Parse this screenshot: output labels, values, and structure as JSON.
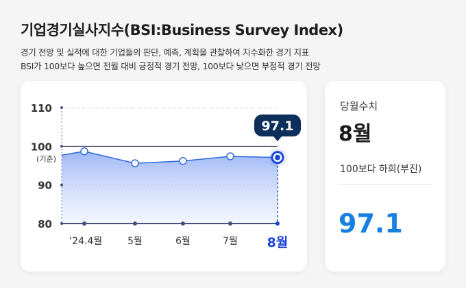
{
  "title": "기업경기실사지수(BSI:Business Survey Index)",
  "description": [
    "경기 전망 및 실적에 대한 기업들의 판단, 예측, 계획을 관찰하여 지수화한 경기 지표",
    "BSI가 100보다 높으면 전월 대비 긍정적 경기 전망, 100보다 낮으면 부정적 경기 전망"
  ],
  "colors": {
    "accent": "#1a45d8",
    "line": "#2e68d8",
    "value": "#1681e0",
    "bubble": "#0d2f5c"
  },
  "chart_data": {
    "type": "line",
    "categories": [
      "‘24.4월",
      "5월",
      "6월",
      "7월",
      "8월"
    ],
    "values": [
      98.7,
      95.6,
      96.2,
      97.4,
      97.1
    ],
    "y_ticks": [
      "110",
      "100",
      "90",
      "80"
    ],
    "y_tick_values": [
      110,
      100,
      90,
      80
    ],
    "baseline_label": "(기준)",
    "ylim": [
      80,
      110
    ],
    "highlight_index": 4,
    "highlight_label": "97.1"
  },
  "side": {
    "label": "당월수치",
    "month": "8월",
    "status": "100보다 하회(부진)",
    "value": "97.1"
  }
}
